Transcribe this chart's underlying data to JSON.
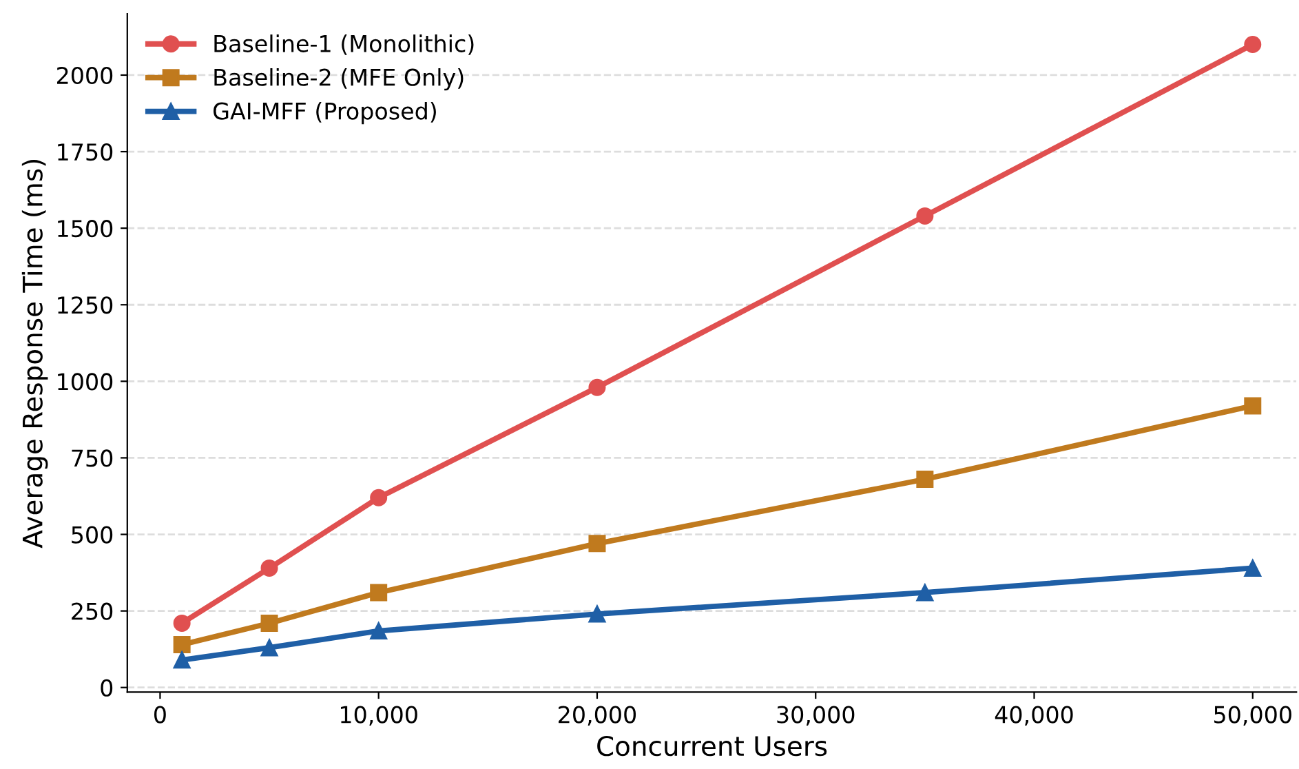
{
  "chart_data": {
    "type": "line",
    "xlabel": "Concurrent Users",
    "ylabel": "Average Response Time (ms)",
    "x": [
      1000,
      5000,
      10000,
      20000,
      35000,
      50000
    ],
    "series": [
      {
        "name": "Baseline-1 (Monolithic)",
        "color": "#e05050",
        "marker": "circle",
        "values": [
          210,
          390,
          620,
          980,
          1540,
          2100
        ]
      },
      {
        "name": "Baseline-2 (MFE Only)",
        "color": "#c07a1e",
        "marker": "square",
        "values": [
          140,
          210,
          310,
          470,
          680,
          920
        ]
      },
      {
        "name": "GAI-MFF (Proposed)",
        "color": "#1f5fa6",
        "marker": "triangle",
        "values": [
          90,
          130,
          185,
          240,
          310,
          390
        ]
      }
    ],
    "xlim": [
      -1500,
      52000
    ],
    "xticks": [
      0,
      {
        "value": 10000,
        "label": "10,000"
      },
      {
        "value": 20000,
        "label": "20,000"
      },
      {
        "value": 30000,
        "label": "30,000"
      },
      {
        "value": 40000,
        "label": "40,000"
      },
      {
        "value": 50000,
        "label": "50,000"
      }
    ],
    "ylim": [
      -15,
      2200
    ],
    "yticks": [
      0,
      250,
      500,
      750,
      1000,
      1250,
      1500,
      1750,
      2000
    ],
    "grid": "y",
    "legend": "top left",
    "line_style": "solid"
  }
}
